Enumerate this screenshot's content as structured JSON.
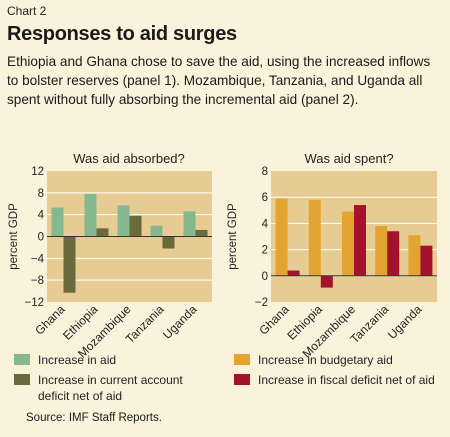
{
  "header": {
    "kicker": "Chart 2",
    "title": "Responses to aid surges",
    "subtitle": "Ethiopia and Ghana chose to save the aid, using the increased inflows to bolster reserves (panel 1). Mozambique, Tanzania, and Uganda all spent without fully absorbing the incremental aid (panel 2)."
  },
  "source": "Source: IMF Staff Reports.",
  "colors": {
    "panel_bg": "#e6cc93",
    "grid": "#ffffff",
    "green": "#85b88f",
    "dark_olive": "#6b6a3d",
    "orange": "#e3a432",
    "dark_red": "#a4122b"
  },
  "chart_data": [
    {
      "type": "bar",
      "title": "Was aid absorbed?",
      "ylabel": "percent GDP",
      "ylim": [
        -12,
        12
      ],
      "yticks": [
        -12,
        -8,
        -4,
        0,
        4,
        8,
        12
      ],
      "categories": [
        "Ghana",
        "Ethiopia",
        "Mozambique",
        "Tanzania",
        "Uganda"
      ],
      "series": [
        {
          "name": "Increase in aid",
          "color": "#85b88f",
          "values": [
            5.3,
            7.8,
            5.7,
            2.0,
            4.6
          ]
        },
        {
          "name": "Increase in current account deficit net of aid",
          "color": "#6b6a3d",
          "values": [
            -10.3,
            1.5,
            3.8,
            -2.2,
            1.2
          ]
        }
      ],
      "legend_position": "bottom"
    },
    {
      "type": "bar",
      "title": "Was aid spent?",
      "ylabel": "percent GDP",
      "ylim": [
        -2,
        8
      ],
      "yticks": [
        -2,
        0,
        2,
        4,
        6,
        8
      ],
      "categories": [
        "Ghana",
        "Ethiopia",
        "Mozambique",
        "Tanzania",
        "Uganda"
      ],
      "series": [
        {
          "name": "Increase in budgetary aid",
          "color": "#e3a432",
          "values": [
            5.9,
            5.8,
            4.9,
            3.8,
            3.1
          ]
        },
        {
          "name": "Increase in fiscal deficit net of aid",
          "color": "#a4122b",
          "values": [
            0.4,
            -0.9,
            5.4,
            3.4,
            2.3
          ]
        }
      ],
      "legend_position": "bottom"
    }
  ]
}
